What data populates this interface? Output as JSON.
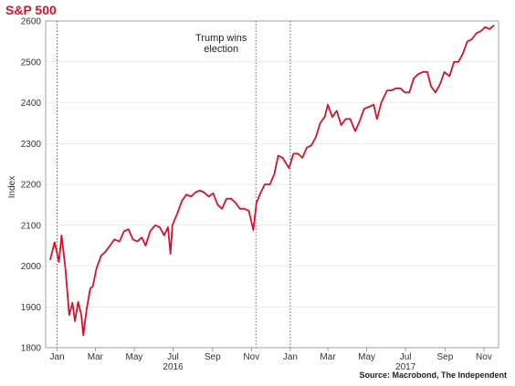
{
  "title": "S&P 500",
  "colors": {
    "title": "#d8102a",
    "line": "#d8102a",
    "grid": "#dddddd",
    "marker": "#555555"
  },
  "chart_data": {
    "type": "line",
    "title": "S&P 500",
    "xlabel": "",
    "ylabel": "Index",
    "ylim": [
      1800,
      2600
    ],
    "yticks": [
      1800,
      1900,
      2000,
      2100,
      2200,
      2300,
      2400,
      2500,
      2600
    ],
    "xlim": [
      "2015-12-14",
      "2017-11-24"
    ],
    "xticks": [
      {
        "label": "Jan",
        "date": "2016-01-01"
      },
      {
        "label": "Mar",
        "date": "2016-03-01"
      },
      {
        "label": "May",
        "date": "2016-05-01"
      },
      {
        "label": "Jul",
        "date": "2016-07-01"
      },
      {
        "label": "Sep",
        "date": "2016-09-01"
      },
      {
        "label": "Nov",
        "date": "2016-11-01"
      },
      {
        "label": "Jan",
        "date": "2017-01-01"
      },
      {
        "label": "Mar",
        "date": "2017-03-01"
      },
      {
        "label": "May",
        "date": "2017-05-01"
      },
      {
        "label": "Jul",
        "date": "2017-07-01"
      },
      {
        "label": "Sep",
        "date": "2017-09-01"
      },
      {
        "label": "Nov",
        "date": "2017-11-01"
      }
    ],
    "year_labels": [
      {
        "label": "2016",
        "date": "2016-07-01"
      },
      {
        "label": "2017",
        "date": "2017-07-01"
      }
    ],
    "grid": true,
    "legend": "none",
    "vlines": [
      "2016-01-01",
      "2016-11-08",
      "2017-01-01"
    ],
    "annotations": [
      {
        "text_lines": [
          "Trump wins",
          "election"
        ],
        "date": "2016-11-08"
      }
    ],
    "source": "Source: Macrobond, The Independent",
    "series": [
      {
        "x": [
          "2015-12-21",
          "2015-12-28",
          "2016-01-04",
          "2016-01-08",
          "2016-01-14",
          "2016-01-20",
          "2016-01-25",
          "2016-01-29",
          "2016-02-03",
          "2016-02-08",
          "2016-02-11",
          "2016-02-16",
          "2016-02-22",
          "2016-02-26",
          "2016-03-03",
          "2016-03-10",
          "2016-03-17",
          "2016-03-24",
          "2016-03-31",
          "2016-04-08",
          "2016-04-15",
          "2016-04-22",
          "2016-04-29",
          "2016-05-06",
          "2016-05-13",
          "2016-05-19",
          "2016-05-26",
          "2016-06-03",
          "2016-06-10",
          "2016-06-17",
          "2016-06-23",
          "2016-06-27",
          "2016-06-30",
          "2016-07-08",
          "2016-07-15",
          "2016-07-22",
          "2016-07-29",
          "2016-08-05",
          "2016-08-12",
          "2016-08-19",
          "2016-08-26",
          "2016-09-02",
          "2016-09-09",
          "2016-09-16",
          "2016-09-23",
          "2016-09-30",
          "2016-10-07",
          "2016-10-14",
          "2016-10-21",
          "2016-10-28",
          "2016-11-04",
          "2016-11-09",
          "2016-11-15",
          "2016-11-22",
          "2016-11-30",
          "2016-12-07",
          "2016-12-13",
          "2016-12-20",
          "2016-12-30",
          "2017-01-06",
          "2017-01-13",
          "2017-01-20",
          "2017-01-27",
          "2017-02-03",
          "2017-02-10",
          "2017-02-17",
          "2017-02-24",
          "2017-03-01",
          "2017-03-08",
          "2017-03-15",
          "2017-03-22",
          "2017-03-29",
          "2017-04-05",
          "2017-04-13",
          "2017-04-20",
          "2017-04-27",
          "2017-05-05",
          "2017-05-12",
          "2017-05-17",
          "2017-05-24",
          "2017-06-02",
          "2017-06-09",
          "2017-06-16",
          "2017-06-23",
          "2017-06-30",
          "2017-07-07",
          "2017-07-14",
          "2017-07-21",
          "2017-07-28",
          "2017-08-04",
          "2017-08-10",
          "2017-08-17",
          "2017-08-24",
          "2017-08-31",
          "2017-09-08",
          "2017-09-15",
          "2017-09-22",
          "2017-09-29",
          "2017-10-06",
          "2017-10-13",
          "2017-10-20",
          "2017-10-27",
          "2017-11-03",
          "2017-11-10",
          "2017-11-17"
        ],
        "y": [
          2015,
          2058,
          2010,
          2075,
          1995,
          1880,
          1910,
          1865,
          1912,
          1880,
          1830,
          1890,
          1945,
          1950,
          1995,
          2025,
          2035,
          2050,
          2065,
          2060,
          2085,
          2090,
          2065,
          2060,
          2070,
          2050,
          2085,
          2100,
          2095,
          2075,
          2095,
          2030,
          2100,
          2130,
          2160,
          2175,
          2170,
          2180,
          2185,
          2180,
          2170,
          2178,
          2150,
          2140,
          2165,
          2165,
          2155,
          2140,
          2140,
          2135,
          2088,
          2155,
          2178,
          2200,
          2200,
          2225,
          2270,
          2265,
          2240,
          2275,
          2275,
          2265,
          2290,
          2295,
          2315,
          2350,
          2365,
          2395,
          2365,
          2380,
          2345,
          2360,
          2360,
          2330,
          2355,
          2385,
          2390,
          2395,
          2360,
          2400,
          2430,
          2430,
          2435,
          2435,
          2425,
          2425,
          2460,
          2470,
          2475,
          2475,
          2440,
          2425,
          2445,
          2475,
          2465,
          2500,
          2500,
          2520,
          2550,
          2555,
          2570,
          2575,
          2585,
          2580,
          2590
        ]
      }
    ]
  }
}
